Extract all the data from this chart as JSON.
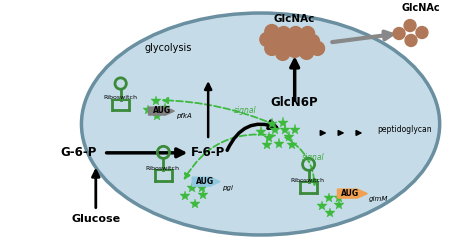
{
  "bg_color": "#ffffff",
  "ellipse_color": "#c5dce8",
  "ellipse_edge": "#6a8fa0",
  "green_dark": "#3a8a3a",
  "green_star": "#3dba3d",
  "orange_aug": "#f0a050",
  "blue_aug": "#90c8e0",
  "gray_aug": "#808080",
  "brown_dot": "#b07858",
  "dashed_green": "#3dba3d",
  "figsize": [
    4.74,
    2.48
  ],
  "dpi": 100,
  "labels": {
    "glucose": "Glucose",
    "g6p": "G-6-P",
    "f6p": "F-6-P",
    "glcn6p": "GlcN6P",
    "glycolysis": "glycolysis",
    "glcnac": "GlcNAc",
    "glcnac2": "GlcNAc",
    "peptidoglycan": "peptidoglycan",
    "signal1": "signal",
    "signal2": "signal",
    "riboswitch": "Riboswitch",
    "pgi": "pgi",
    "pfkA": "pfkA",
    "glmM": "glmM"
  }
}
